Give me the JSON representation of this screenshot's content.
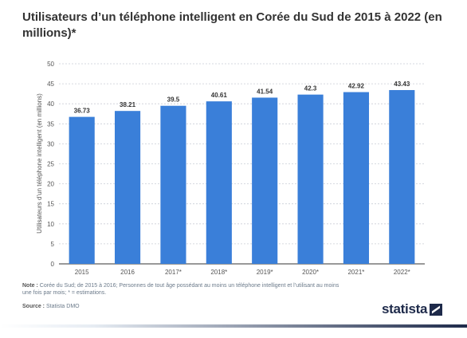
{
  "chart_data": {
    "type": "bar",
    "title": "Utilisateurs d’un téléphone intelligent en Corée du Sud de 2015 à 2022 (en millions)*",
    "ylabel": "Utilisateurs d’un téléphone intelligent (en millions)",
    "xlabel": "",
    "categories": [
      "2015",
      "2016",
      "2017*",
      "2018*",
      "2019*",
      "2020*",
      "2021*",
      "2022*"
    ],
    "values": [
      36.73,
      38.21,
      39.5,
      40.61,
      41.54,
      42.3,
      42.92,
      43.43
    ],
    "value_labels": [
      "36.73",
      "38.21",
      "39.5",
      "40.61",
      "41.54",
      "42.3",
      "42.92",
      "43.43"
    ],
    "yticks": [
      "0",
      "5",
      "10",
      "15",
      "20",
      "25",
      "30",
      "35",
      "40",
      "45",
      "50"
    ],
    "ylim": [
      0,
      50
    ],
    "grid": true,
    "bar_color": "#3a7fd9"
  },
  "footer": {
    "note_label": "Note :",
    "note_text": "Corée du Sud; de 2015 à 2016; Personnes de tout âge possédant au moins un téléphone intelligent et l’utilisant au moins une fois par mois; * = estimations.",
    "source_label": "Source :",
    "source_text": "Statista DMO"
  },
  "brand": {
    "name": "statista"
  }
}
